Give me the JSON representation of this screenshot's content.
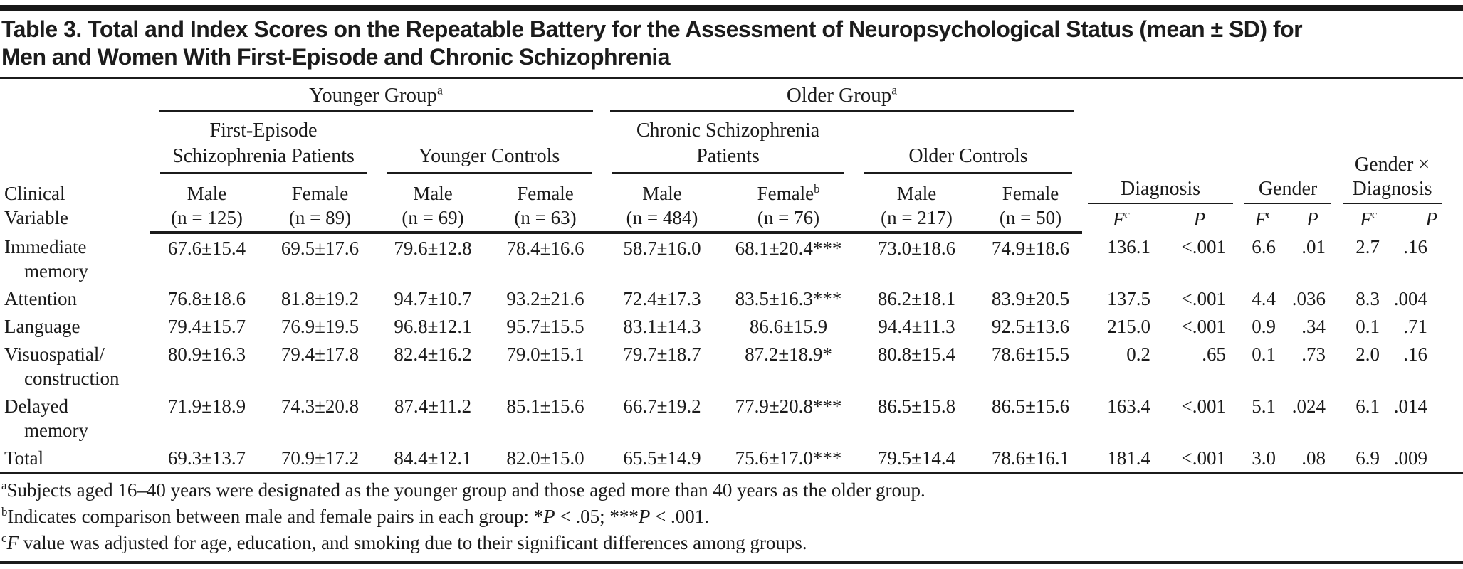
{
  "title": {
    "line1": "Table 3. Total and Index Scores on the Repeatable Battery for the Assessment of Neuropsychological Status (mean ± SD) for",
    "line2": "Men and Women With First-Episode and Chronic Schizophrenia"
  },
  "table": {
    "corner_label_lines": [
      "Clinical",
      "Variable"
    ],
    "age_groups": [
      {
        "label": "Younger Group",
        "sup": "a"
      },
      {
        "label": "Older Group",
        "sup": "a"
      }
    ],
    "cohorts": [
      {
        "lines": [
          "First-Episode",
          "Schizophrenia Patients"
        ]
      },
      {
        "lines": [
          "Younger Controls"
        ]
      },
      {
        "lines": [
          "Chronic Schizophrenia",
          "Patients"
        ]
      },
      {
        "lines": [
          "Older Controls"
        ]
      }
    ],
    "sex_columns": [
      {
        "sex": "Male",
        "sup": "",
        "n": "(n = 125)"
      },
      {
        "sex": "Female",
        "sup": "",
        "n": "(n = 89)"
      },
      {
        "sex": "Male",
        "sup": "",
        "n": "(n = 69)"
      },
      {
        "sex": "Female",
        "sup": "",
        "n": "(n = 63)"
      },
      {
        "sex": "Male",
        "sup": "",
        "n": "(n = 484)"
      },
      {
        "sex": "Female",
        "sup": "b",
        "n": "(n = 76)"
      },
      {
        "sex": "Male",
        "sup": "",
        "n": "(n = 217)"
      },
      {
        "sex": "Female",
        "sup": "",
        "n": "(n = 50)"
      }
    ],
    "stat_groups": [
      {
        "lines": [
          "Diagnosis"
        ]
      },
      {
        "lines": [
          "Gender"
        ]
      },
      {
        "lines": [
          "Gender ×",
          "Diagnosis"
        ]
      }
    ],
    "stat_subheaders": {
      "f": "F",
      "f_sup": "c",
      "p": "P"
    },
    "rows": [
      {
        "variable_lines": [
          "Immediate",
          "memory"
        ],
        "values": [
          "67.6±15.4",
          "69.5±17.6",
          "79.6±12.8",
          "78.4±16.6",
          "58.7±16.0",
          "68.1±20.4***",
          "73.0±18.6",
          "74.9±18.6",
          "136.1",
          "<.001",
          "6.6",
          ".01",
          "2.7",
          ".16"
        ]
      },
      {
        "variable_lines": [
          "Attention"
        ],
        "values": [
          "76.8±18.6",
          "81.8±19.2",
          "94.7±10.7",
          "93.2±21.6",
          "72.4±17.3",
          "83.5±16.3***",
          "86.2±18.1",
          "83.9±20.5",
          "137.5",
          "<.001",
          "4.4",
          ".036",
          "8.3",
          ".004"
        ]
      },
      {
        "variable_lines": [
          "Language"
        ],
        "values": [
          "79.4±15.7",
          "76.9±19.5",
          "96.8±12.1",
          "95.7±15.5",
          "83.1±14.3",
          "86.6±15.9",
          "94.4±11.3",
          "92.5±13.6",
          "215.0",
          "<.001",
          "0.9",
          ".34",
          "0.1",
          ".71"
        ]
      },
      {
        "variable_lines": [
          "Visuospatial/",
          "construction"
        ],
        "values": [
          "80.9±16.3",
          "79.4±17.8",
          "82.4±16.2",
          "79.0±15.1",
          "79.7±18.7",
          "87.2±18.9*",
          "80.8±15.4",
          "78.6±15.5",
          "0.2",
          ".65",
          "0.1",
          ".73",
          "2.0",
          ".16"
        ]
      },
      {
        "variable_lines": [
          "Delayed",
          "memory"
        ],
        "values": [
          "71.9±18.9",
          "74.3±20.8",
          "87.4±11.2",
          "85.1±15.6",
          "66.7±19.2",
          "77.9±20.8***",
          "86.5±15.8",
          "86.5±15.6",
          "163.4",
          "<.001",
          "5.1",
          ".024",
          "6.1",
          ".014"
        ]
      },
      {
        "variable_lines": [
          "Total"
        ],
        "values": [
          "69.3±13.7",
          "70.9±17.2",
          "84.4±12.1",
          "82.0±15.0",
          "65.5±14.9",
          "75.6±17.0***",
          "79.5±14.4",
          "78.6±16.1",
          "181.4",
          "<.001",
          "3.0",
          ".08",
          "6.9",
          ".009"
        ]
      }
    ]
  },
  "footnotes": [
    {
      "sup": "a",
      "segments": [
        {
          "t": "Subjects aged 16–40 years were designated as the younger group and those aged more than 40 years as the older group."
        }
      ]
    },
    {
      "sup": "b",
      "segments": [
        {
          "t": "Indicates comparison between male and female pairs in each group: *"
        },
        {
          "t": "P",
          "i": true
        },
        {
          "t": " < .05; ***"
        },
        {
          "t": "P",
          "i": true
        },
        {
          "t": " < .001."
        }
      ]
    },
    {
      "sup": "c",
      "segments": [
        {
          "t": "F",
          "i": true
        },
        {
          "t": " value was adjusted for age, education, and smoking due to their significant differences among groups."
        }
      ]
    }
  ]
}
